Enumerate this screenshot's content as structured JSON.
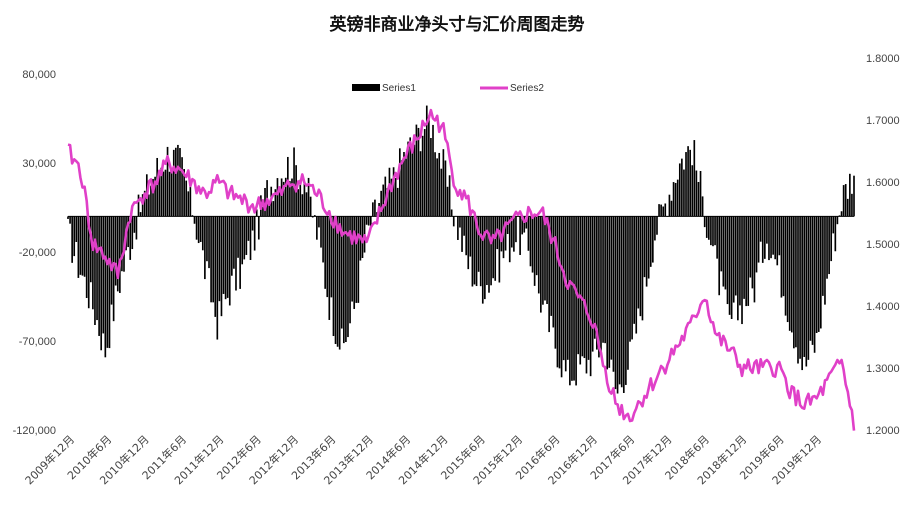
{
  "chart_data": {
    "type": "bar+line",
    "title": "英镑非商业净头寸与汇价周图走势",
    "legend_position": "top-center",
    "grid": false,
    "y_left": {
      "ticks": [
        "80,000",
        "30,000",
        "-20,000",
        "-70,000",
        "-120,000"
      ],
      "range": [
        -120000,
        80000
      ]
    },
    "y_right": {
      "ticks": [
        "1.8000",
        "1.7000",
        "1.6000",
        "1.5000",
        "1.4000",
        "1.3000",
        "1.2000"
      ],
      "range": [
        1.2,
        1.8
      ]
    },
    "x_ticks": [
      "2009年12月",
      "2010年6月",
      "2010年12月",
      "2011年6月",
      "2011年12月",
      "2012年6月",
      "2012年12月",
      "2013年6月",
      "2013年12月",
      "2014年6月",
      "2014年12月",
      "2015年6月",
      "2015年12月",
      "2016年6月",
      "2016年12月",
      "2017年6月",
      "2017年12月",
      "2018年6月",
      "2018年12月",
      "2019年6月",
      "2019年12月"
    ],
    "series": [
      {
        "name": "Series1",
        "kind": "bar",
        "axis": "left",
        "color": "#000000",
        "anchors": [
          [
            0,
            -10000
          ],
          [
            2,
            -30000
          ],
          [
            4,
            -50000
          ],
          [
            6,
            -75000
          ],
          [
            8,
            -40000
          ],
          [
            10,
            -15000
          ],
          [
            12,
            10000
          ],
          [
            14,
            25000
          ],
          [
            16,
            35000
          ],
          [
            18,
            30000
          ],
          [
            20,
            5000
          ],
          [
            22,
            -30000
          ],
          [
            24,
            -60000
          ],
          [
            26,
            -40000
          ],
          [
            28,
            -30000
          ],
          [
            30,
            -10000
          ],
          [
            32,
            15000
          ],
          [
            34,
            25000
          ],
          [
            36,
            30000
          ],
          [
            38,
            20000
          ],
          [
            40,
            -10000
          ],
          [
            42,
            -50000
          ],
          [
            44,
            -75000
          ],
          [
            46,
            -50000
          ],
          [
            48,
            -10000
          ],
          [
            50,
            10000
          ],
          [
            52,
            20000
          ],
          [
            54,
            35000
          ],
          [
            56,
            45000
          ],
          [
            58,
            55000
          ],
          [
            60,
            30000
          ],
          [
            62,
            0
          ],
          [
            64,
            -25000
          ],
          [
            66,
            -40000
          ],
          [
            68,
            -35000
          ],
          [
            70,
            -20000
          ],
          [
            72,
            -10000
          ],
          [
            74,
            -20000
          ],
          [
            76,
            -50000
          ],
          [
            78,
            -70000
          ],
          [
            80,
            -90000
          ],
          [
            82,
            -85000
          ],
          [
            84,
            -80000
          ],
          [
            86,
            -70000
          ],
          [
            88,
            -100000
          ],
          [
            90,
            -80000
          ],
          [
            92,
            -50000
          ],
          [
            94,
            -10000
          ],
          [
            96,
            10000
          ],
          [
            98,
            30000
          ],
          [
            100,
            40000
          ],
          [
            102,
            5000
          ],
          [
            104,
            -30000
          ],
          [
            106,
            -60000
          ],
          [
            108,
            -50000
          ],
          [
            110,
            -40000
          ],
          [
            112,
            -10000
          ],
          [
            114,
            -30000
          ],
          [
            116,
            -60000
          ],
          [
            118,
            -85000
          ],
          [
            120,
            -70000
          ],
          [
            122,
            -30000
          ],
          [
            124,
            10000
          ],
          [
            126,
            25000
          ]
        ]
      },
      {
        "name": "Series2",
        "kind": "line",
        "axis": "right",
        "color": "#e040c8",
        "anchors": [
          [
            0,
            1.65
          ],
          [
            2,
            1.62
          ],
          [
            4,
            1.5
          ],
          [
            6,
            1.48
          ],
          [
            8,
            1.45
          ],
          [
            10,
            1.55
          ],
          [
            12,
            1.58
          ],
          [
            14,
            1.6
          ],
          [
            16,
            1.63
          ],
          [
            18,
            1.62
          ],
          [
            20,
            1.6
          ],
          [
            22,
            1.58
          ],
          [
            24,
            1.6
          ],
          [
            26,
            1.58
          ],
          [
            28,
            1.57
          ],
          [
            30,
            1.56
          ],
          [
            32,
            1.57
          ],
          [
            34,
            1.58
          ],
          [
            36,
            1.6
          ],
          [
            38,
            1.6
          ],
          [
            40,
            1.58
          ],
          [
            42,
            1.55
          ],
          [
            44,
            1.52
          ],
          [
            46,
            1.51
          ],
          [
            48,
            1.5
          ],
          [
            50,
            1.55
          ],
          [
            52,
            1.6
          ],
          [
            54,
            1.64
          ],
          [
            56,
            1.67
          ],
          [
            58,
            1.71
          ],
          [
            60,
            1.69
          ],
          [
            62,
            1.6
          ],
          [
            64,
            1.57
          ],
          [
            66,
            1.52
          ],
          [
            68,
            1.5
          ],
          [
            70,
            1.52
          ],
          [
            72,
            1.54
          ],
          [
            74,
            1.55
          ],
          [
            76,
            1.55
          ],
          [
            78,
            1.5
          ],
          [
            80,
            1.44
          ],
          [
            82,
            1.41
          ],
          [
            84,
            1.38
          ],
          [
            86,
            1.3
          ],
          [
            88,
            1.24
          ],
          [
            90,
            1.22
          ],
          [
            92,
            1.25
          ],
          [
            94,
            1.28
          ],
          [
            96,
            1.31
          ],
          [
            98,
            1.34
          ],
          [
            100,
            1.37
          ],
          [
            102,
            1.42
          ],
          [
            104,
            1.35
          ],
          [
            106,
            1.33
          ],
          [
            108,
            1.3
          ],
          [
            110,
            1.3
          ],
          [
            112,
            1.3
          ],
          [
            114,
            1.3
          ],
          [
            116,
            1.26
          ],
          [
            118,
            1.24
          ],
          [
            120,
            1.25
          ],
          [
            122,
            1.28
          ],
          [
            124,
            1.31
          ],
          [
            126,
            1.21
          ]
        ]
      }
    ]
  }
}
